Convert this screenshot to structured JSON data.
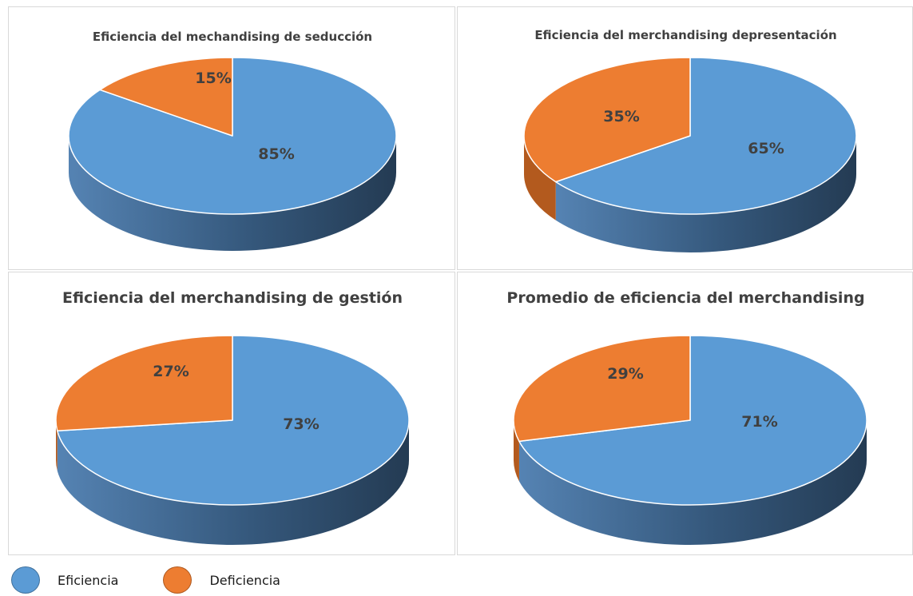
{
  "colors": {
    "eficiencia": "#5B9BD5",
    "eficiencia_dark": "#243B53",
    "deficiencia": "#ED7D31",
    "deficiencia_dark": "#B35A1E"
  },
  "legend": {
    "items": [
      {
        "label": "Eficiencia",
        "color": "#5B9BD5"
      },
      {
        "label": "Deficiencia",
        "color": "#ED7D31"
      }
    ]
  },
  "chart_data": [
    {
      "type": "pie",
      "title": "Eficiencia del mechandising de seducción",
      "categories": [
        "Eficiencia",
        "Deficiencia"
      ],
      "values": [
        85,
        15
      ],
      "labels": [
        "85%",
        "15%"
      ]
    },
    {
      "type": "pie",
      "title": "Eficiencia del merchandising depresentación",
      "categories": [
        "Eficiencia",
        "Deficiencia"
      ],
      "values": [
        65,
        35
      ],
      "labels": [
        "65%",
        "35%"
      ]
    },
    {
      "type": "pie",
      "title": "Eficiencia del merchandising de gestión",
      "categories": [
        "Eficiencia",
        "Deficiencia"
      ],
      "values": [
        73,
        27
      ],
      "labels": [
        "73%",
        "27%"
      ]
    },
    {
      "type": "pie",
      "title": "Promedio de eficiencia del merchandising",
      "categories": [
        "Eficiencia",
        "Deficiencia"
      ],
      "values": [
        71,
        29
      ],
      "labels": [
        "71%",
        "29%"
      ]
    }
  ]
}
